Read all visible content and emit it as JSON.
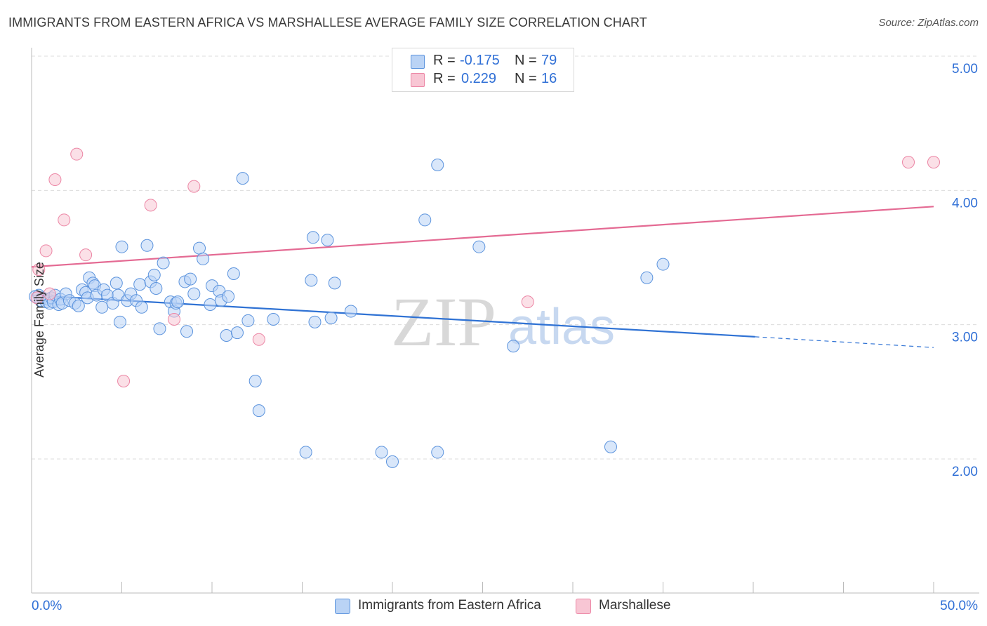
{
  "header": {
    "title": "IMMIGRANTS FROM EASTERN AFRICA VS MARSHALLESE AVERAGE FAMILY SIZE CORRELATION CHART",
    "source": "Source: ZipAtlas.com"
  },
  "legend_top": {
    "rows": [
      {
        "r_label": "R =",
        "r_value": "-0.175",
        "n_label": "N =",
        "n_value": "79",
        "color": "#a9c8f2"
      },
      {
        "r_label": "R =",
        "r_value": "0.229",
        "n_label": "N =",
        "n_value": "16",
        "color": "#f8bccd"
      }
    ]
  },
  "legend_bottom": {
    "items": [
      {
        "label": "Immigrants from Eastern Africa",
        "color": "#a9c8f2"
      },
      {
        "label": "Marshallese",
        "color": "#f8bccd"
      }
    ]
  },
  "watermark": {
    "zip": "ZIP",
    "atlas": "atlas"
  },
  "chart_data": {
    "type": "scatter",
    "ylabel": "Average Family Size",
    "xlim": [
      0,
      50
    ],
    "ylim": [
      1.0,
      5.2
    ],
    "x_tick_labels": [
      "0.0%",
      "50.0%"
    ],
    "y_ticks": [
      2.0,
      3.0,
      4.0,
      5.0
    ],
    "y_tick_labels": [
      "2.00",
      "3.00",
      "4.00",
      "5.00"
    ],
    "grid": true,
    "series": [
      {
        "name": "Immigrants from Eastern Africa",
        "color": "#5b93dd",
        "fill": "#bad3f5",
        "trend_color": "#2f72d4",
        "trend": {
          "x0": 0,
          "y0": 3.22,
          "x1": 40.1,
          "y1": 2.91,
          "dash_to_x": 50,
          "dash_to_y": 2.83
        },
        "points": [
          [
            0.2,
            3.21
          ],
          [
            0.4,
            3.22
          ],
          [
            0.5,
            3.18
          ],
          [
            0.6,
            3.2
          ],
          [
            0.8,
            3.17
          ],
          [
            0.9,
            3.19
          ],
          [
            1.0,
            3.16
          ],
          [
            1.1,
            3.2
          ],
          [
            1.2,
            3.17
          ],
          [
            1.3,
            3.22
          ],
          [
            1.5,
            3.15
          ],
          [
            1.6,
            3.19
          ],
          [
            1.7,
            3.16
          ],
          [
            1.9,
            3.23
          ],
          [
            2.1,
            3.18
          ],
          [
            2.4,
            3.16
          ],
          [
            2.6,
            3.14
          ],
          [
            2.8,
            3.26
          ],
          [
            3.0,
            3.24
          ],
          [
            3.1,
            3.2
          ],
          [
            3.2,
            3.35
          ],
          [
            3.4,
            3.31
          ],
          [
            3.5,
            3.29
          ],
          [
            3.6,
            3.22
          ],
          [
            3.9,
            3.13
          ],
          [
            4.0,
            3.26
          ],
          [
            4.2,
            3.22
          ],
          [
            4.5,
            3.16
          ],
          [
            4.7,
            3.31
          ],
          [
            4.8,
            3.22
          ],
          [
            4.9,
            3.02
          ],
          [
            5.0,
            3.58
          ],
          [
            5.3,
            3.18
          ],
          [
            5.5,
            3.23
          ],
          [
            5.8,
            3.18
          ],
          [
            6.0,
            3.3
          ],
          [
            6.1,
            3.13
          ],
          [
            6.4,
            3.59
          ],
          [
            6.6,
            3.32
          ],
          [
            6.8,
            3.37
          ],
          [
            6.9,
            3.27
          ],
          [
            7.1,
            2.97
          ],
          [
            7.3,
            3.46
          ],
          [
            7.7,
            3.17
          ],
          [
            7.9,
            3.1
          ],
          [
            8.0,
            3.16
          ],
          [
            8.1,
            3.17
          ],
          [
            8.5,
            3.32
          ],
          [
            8.6,
            2.95
          ],
          [
            8.8,
            3.34
          ],
          [
            9.0,
            3.23
          ],
          [
            9.3,
            3.57
          ],
          [
            9.5,
            3.49
          ],
          [
            9.9,
            3.15
          ],
          [
            10.0,
            3.29
          ],
          [
            10.4,
            3.25
          ],
          [
            10.5,
            3.18
          ],
          [
            10.8,
            2.92
          ],
          [
            10.9,
            3.21
          ],
          [
            11.2,
            3.38
          ],
          [
            11.4,
            2.94
          ],
          [
            11.7,
            4.09
          ],
          [
            12.0,
            3.03
          ],
          [
            12.4,
            2.58
          ],
          [
            12.6,
            2.36
          ],
          [
            13.4,
            3.04
          ],
          [
            15.2,
            2.05
          ],
          [
            15.5,
            3.33
          ],
          [
            15.6,
            3.65
          ],
          [
            15.7,
            3.02
          ],
          [
            16.4,
            3.63
          ],
          [
            16.6,
            3.05
          ],
          [
            16.8,
            3.31
          ],
          [
            17.7,
            3.1
          ],
          [
            19.4,
            2.05
          ],
          [
            20.0,
            1.98
          ],
          [
            21.8,
            3.78
          ],
          [
            22.5,
            4.19
          ],
          [
            22.5,
            2.05
          ]
        ]
      },
      {
        "name": "Marshallese",
        "color": "#ec86a5",
        "fill": "#f8c6d4",
        "trend_color": "#e46a93",
        "trend": {
          "x0": 0,
          "y0": 3.43,
          "x1": 50,
          "y1": 3.88
        },
        "points": [
          [
            0.3,
            3.2
          ],
          [
            0.4,
            3.41
          ],
          [
            0.8,
            3.55
          ],
          [
            1.0,
            3.23
          ],
          [
            1.3,
            4.08
          ],
          [
            1.8,
            3.78
          ],
          [
            2.5,
            4.27
          ],
          [
            3.0,
            3.52
          ],
          [
            5.1,
            2.58
          ],
          [
            6.6,
            3.89
          ],
          [
            7.9,
            3.04
          ],
          [
            9.0,
            4.03
          ],
          [
            12.6,
            2.89
          ],
          [
            27.5,
            3.17
          ],
          [
            48.6,
            4.21
          ],
          [
            50.0,
            4.21
          ]
        ]
      }
    ],
    "extra_points": [
      {
        "series": 0,
        "x": 24.8,
        "y": 3.58
      },
      {
        "series": 0,
        "x": 26.7,
        "y": 2.84
      },
      {
        "series": 0,
        "x": 32.1,
        "y": 2.09
      },
      {
        "series": 0,
        "x": 34.1,
        "y": 3.35
      },
      {
        "series": 0,
        "x": 35.0,
        "y": 3.45
      }
    ]
  }
}
